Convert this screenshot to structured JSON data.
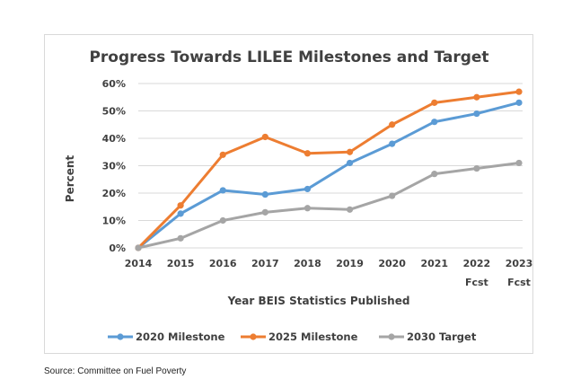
{
  "chart_data": {
    "type": "line",
    "title": "Progress Towards LILEE Milestones and Target",
    "xlabel": "Year BEIS Statistics Published",
    "ylabel": "Percent",
    "categories": [
      "2014",
      "2015",
      "2016",
      "2017",
      "2018",
      "2019",
      "2020",
      "2021",
      "2022",
      "2023"
    ],
    "category_sublabels": [
      "",
      "",
      "",
      "",
      "",
      "",
      "",
      "",
      "Fcst",
      "Fcst"
    ],
    "y_ticks": [
      "0%",
      "10%",
      "20%",
      "30%",
      "40%",
      "50%",
      "60%"
    ],
    "ylim": [
      0,
      60
    ],
    "grid": true,
    "legend_position": "bottom",
    "series": [
      {
        "name": "2020 Milestone",
        "color": "#5b9bd5",
        "values": [
          0,
          12.5,
          21,
          19.5,
          21.5,
          31,
          38,
          46,
          49,
          53
        ]
      },
      {
        "name": "2025 Milestone",
        "color": "#ed7d31",
        "values": [
          0,
          15.5,
          34,
          40.5,
          34.5,
          35,
          45,
          53,
          55,
          57
        ]
      },
      {
        "name": "2030 Target",
        "color": "#a5a5a5",
        "values": [
          0,
          3.5,
          10,
          13,
          14.5,
          14,
          19,
          27,
          29,
          31
        ]
      }
    ]
  },
  "source_note": "Source: Committee on Fuel Poverty"
}
